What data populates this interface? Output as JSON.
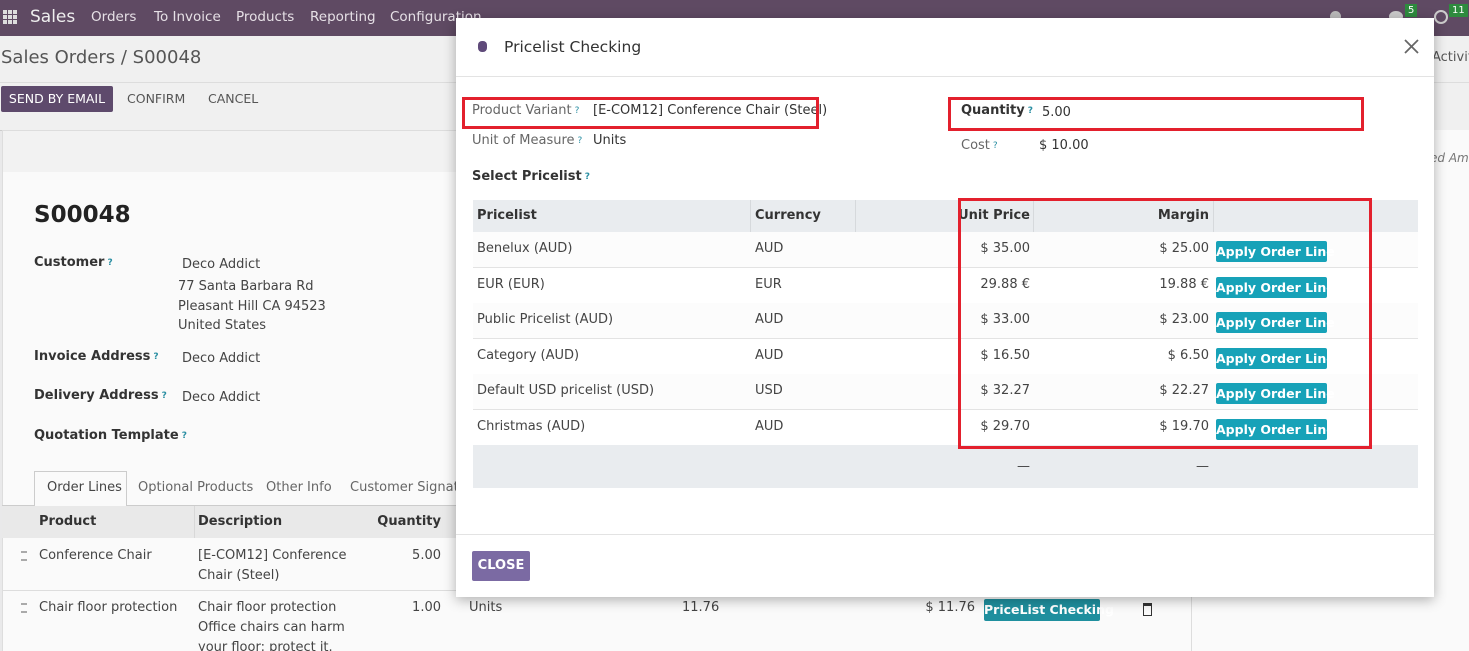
{
  "navbar": {
    "app": "Sales",
    "menu": [
      "Orders",
      "To Invoice",
      "Products",
      "Reporting",
      "Configuration"
    ],
    "badges": [
      "5",
      "11"
    ]
  },
  "breadcrumb": "Sales Orders / S00048",
  "actions": [
    "SEND BY EMAIL",
    "CONFIRM",
    "CANCEL"
  ],
  "chatter_fragments": [
    "Activiti",
    "ed Am"
  ],
  "help_mark": "?",
  "form": {
    "name": "S00048",
    "customer": {
      "label": "Customer",
      "lines": [
        "Deco Addict",
        "77 Santa Barbara Rd",
        "Pleasant Hill CA 94523",
        "United States"
      ]
    },
    "invoice_address": {
      "label": "Invoice Address",
      "value": "Deco Addict"
    },
    "delivery_address": {
      "label": "Delivery Address",
      "value": "Deco Addict"
    },
    "quotation_template": {
      "label": "Quotation Template"
    }
  },
  "tabs": [
    "Order Lines",
    "Optional Products",
    "Other Info",
    "Customer Signatur"
  ],
  "order_lines": {
    "headers": [
      "Product",
      "Description",
      "Quantity"
    ],
    "rows": [
      {
        "product": "Conference Chair",
        "description": [
          "[E-COM12] Conference",
          "Chair (Steel)"
        ],
        "quantity": "5.00"
      },
      {
        "product": "Chair floor protection",
        "description": [
          "Chair floor protection",
          "Office chairs can harm",
          "your floor: protect it."
        ],
        "quantity": "1.00",
        "uom": "Units",
        "price": "11.76",
        "subtotal": "$ 11.76",
        "action": "PriceList Checking"
      }
    ]
  },
  "dialog": {
    "title": "Pricelist Checking",
    "product_variant": {
      "label": "Product Variant",
      "value": "[E-COM12] Conference Chair (Steel)"
    },
    "unit_of_measure": {
      "label": "Unit of Measure",
      "value": "Units"
    },
    "quantity": {
      "label": "Quantity",
      "value": "5.00"
    },
    "cost": {
      "label": "Cost",
      "value": "$ 10.00"
    },
    "select_label": "Select Pricelist",
    "table": {
      "headers": [
        "Pricelist",
        "Currency",
        "Unit Price",
        "Margin"
      ],
      "rows": [
        [
          "Benelux (AUD)",
          "AUD",
          "$ 35.00",
          "$ 25.00"
        ],
        [
          "EUR (EUR)",
          "EUR",
          "29.88 €",
          "19.88 €"
        ],
        [
          "Public Pricelist (AUD)",
          "AUD",
          "$ 33.00",
          "$ 23.00"
        ],
        [
          "Category (AUD)",
          "AUD",
          "$ 16.50",
          "$ 6.50"
        ],
        [
          "Default USD pricelist (USD)",
          "USD",
          "$ 32.27",
          "$ 22.27"
        ],
        [
          "Christmas (AUD)",
          "AUD",
          "$ 29.70",
          "$ 19.70"
        ]
      ],
      "row_action": "Apply Order Line",
      "totals": [
        "—",
        "—"
      ]
    },
    "close": "CLOSE"
  }
}
